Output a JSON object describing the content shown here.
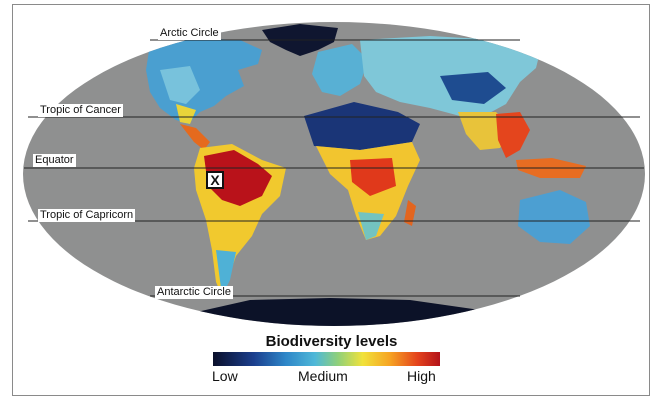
{
  "map": {
    "latitude_lines": {
      "arctic": "Arctic Circle",
      "cancer": "Tropic of Cancer",
      "equator": "Equator",
      "capricorn": "Tropic of Capricorn",
      "antarctic": "Antarctic Circle"
    },
    "marker": "X"
  },
  "legend": {
    "title": "Biodiversity levels",
    "low": "Low",
    "medium": "Medium",
    "high": "High"
  },
  "colors": {
    "ocean": "#8f9090",
    "low": "#0a0f2a",
    "medium": "#4fb8d8",
    "high": "#b3121a"
  }
}
